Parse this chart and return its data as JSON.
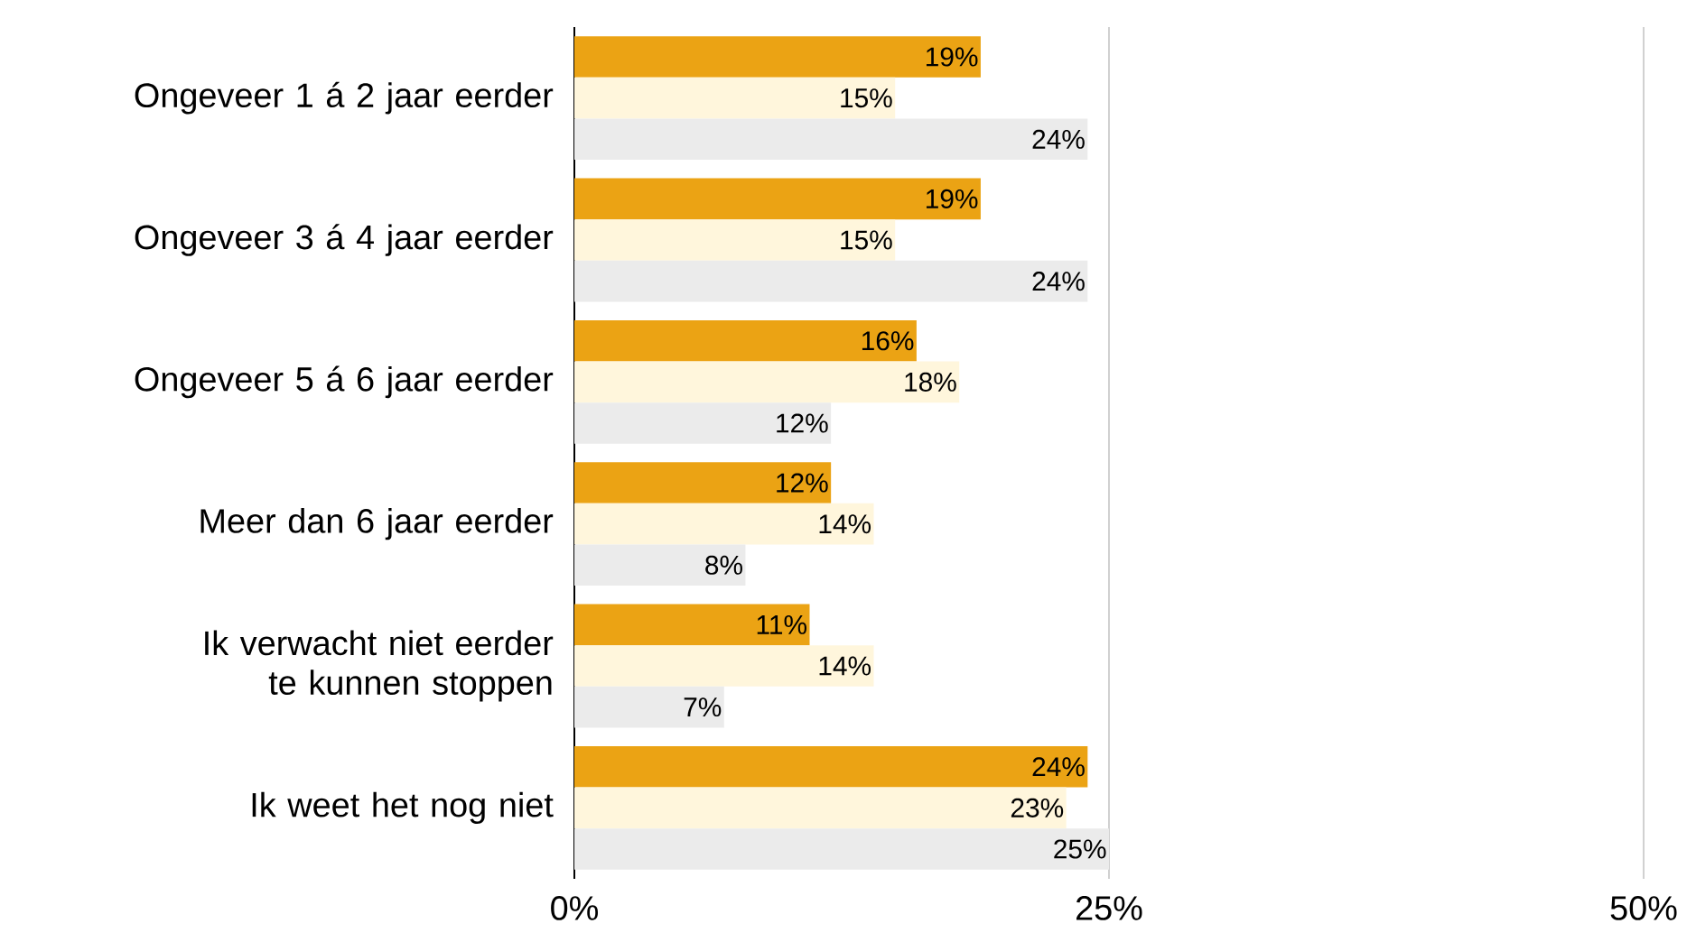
{
  "chart_data": {
    "type": "bar",
    "orientation": "horizontal",
    "categories": [
      "Ongeveer 1 á 2 jaar eerder",
      "Ongeveer 3 á 4 jaar eerder",
      "Ongeveer 5 á 6 jaar eerder",
      "Meer dan 6 jaar eerder",
      "Ik verwacht niet eerder te kunnen stoppen",
      "Ik weet het nog niet"
    ],
    "series": [
      {
        "color": "#eba314",
        "values": [
          19,
          19,
          16,
          12,
          11,
          24
        ],
        "value_labels": [
          "19%",
          "19%",
          "16%",
          "12%",
          "11%",
          "24%"
        ]
      },
      {
        "color": "#fff6dc",
        "values": [
          15,
          15,
          18,
          14,
          14,
          23
        ],
        "value_labels": [
          "15%",
          "15%",
          "18%",
          "14%",
          "14%",
          "23%"
        ]
      },
      {
        "color": "#ebebeb",
        "values": [
          24,
          24,
          12,
          8,
          7,
          25
        ],
        "value_labels": [
          "24%",
          "24%",
          "12%",
          "8%",
          "7%",
          "25%"
        ]
      }
    ],
    "xlim": [
      0,
      50
    ],
    "xticks": [
      {
        "value": 0,
        "label": "0%"
      },
      {
        "value": 25,
        "label": "25%"
      },
      {
        "value": 50,
        "label": "50%"
      }
    ],
    "grid": "x"
  }
}
